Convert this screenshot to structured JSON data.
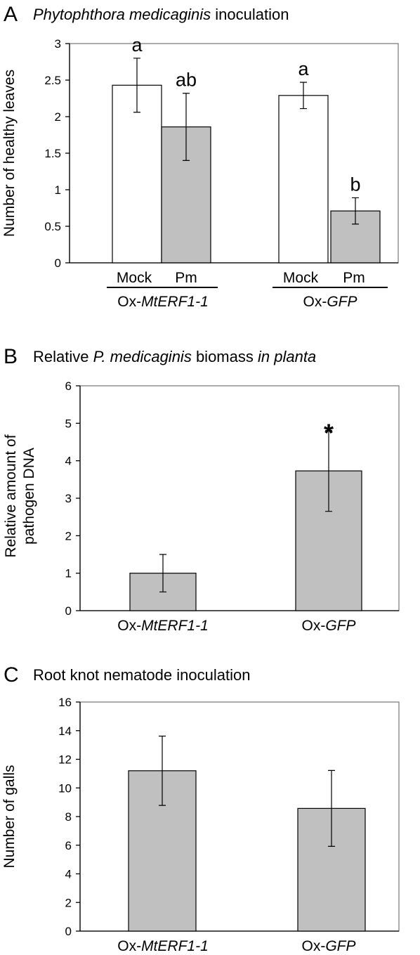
{
  "colors": {
    "mock_bar": "#ffffff",
    "treated_bar": "#c0c0c0",
    "axis": "#000000",
    "plot_frame": "#808080"
  },
  "chart_data": [
    {
      "panel": "A",
      "type": "bar",
      "title_parts": [
        {
          "text": "Phytophthora medicaginis",
          "italic": true
        },
        {
          "text": " inoculation",
          "italic": false
        }
      ],
      "ylabel": "Number of healthy leaves",
      "ylim": [
        0,
        3
      ],
      "yticks": [
        0,
        0.5,
        1,
        1.5,
        2,
        2.5,
        3
      ],
      "bars": [
        {
          "group": 0,
          "slot": 0,
          "sublabel": "Mock",
          "value": 2.43,
          "err": 0.37,
          "sig": "a",
          "color_key": "mock_bar"
        },
        {
          "group": 0,
          "slot": 1,
          "sublabel": "Pm",
          "value": 1.86,
          "err": 0.46,
          "sig": "ab",
          "color_key": "treated_bar"
        },
        {
          "group": 1,
          "slot": 0,
          "sublabel": "Mock",
          "value": 2.29,
          "err": 0.18,
          "sig": "a",
          "color_key": "mock_bar"
        },
        {
          "group": 1,
          "slot": 1,
          "sublabel": "Pm",
          "value": 0.71,
          "err": 0.18,
          "sig": "b",
          "color_key": "treated_bar"
        }
      ],
      "groups": [
        [
          {
            "text": "Ox-",
            "italic": false
          },
          {
            "text": "MtERF1-1",
            "italic": true
          }
        ],
        [
          {
            "text": "Ox-",
            "italic": false
          },
          {
            "text": "GFP",
            "italic": true
          }
        ]
      ]
    },
    {
      "panel": "B",
      "type": "bar",
      "title_parts": [
        {
          "text": "Relative ",
          "italic": false
        },
        {
          "text": "P. medicaginis",
          "italic": true
        },
        {
          "text": " biomass ",
          "italic": false
        },
        {
          "text": "in planta",
          "italic": true
        }
      ],
      "ylabel_lines": [
        "Relative amount of",
        "pathogen DNA"
      ],
      "ylim": [
        0,
        6
      ],
      "yticks": [
        0,
        1,
        2,
        3,
        4,
        5,
        6
      ],
      "bars": [
        {
          "group": 0,
          "value": 1.0,
          "err": 0.5,
          "color_key": "treated_bar"
        },
        {
          "group": 1,
          "value": 3.73,
          "err": 1.08,
          "sig": "*",
          "color_key": "treated_bar"
        }
      ],
      "groups": [
        [
          {
            "text": "Ox-",
            "italic": false
          },
          {
            "text": "MtERF1-1",
            "italic": true
          }
        ],
        [
          {
            "text": "Ox-",
            "italic": false
          },
          {
            "text": "GFP",
            "italic": true
          }
        ]
      ]
    },
    {
      "panel": "C",
      "type": "bar",
      "title_parts": [
        {
          "text": "Root knot nematode inoculation",
          "italic": false
        }
      ],
      "ylabel": "Number of galls",
      "ylim": [
        0,
        16
      ],
      "yticks": [
        0,
        2,
        4,
        6,
        8,
        10,
        12,
        14,
        16
      ],
      "bars": [
        {
          "group": 0,
          "value": 11.2,
          "err": 2.42,
          "color_key": "treated_bar"
        },
        {
          "group": 1,
          "value": 8.57,
          "err": 2.65,
          "color_key": "treated_bar"
        }
      ],
      "groups": [
        [
          {
            "text": "Ox-",
            "italic": false
          },
          {
            "text": "MtERF1-1",
            "italic": true
          }
        ],
        [
          {
            "text": "Ox-",
            "italic": false
          },
          {
            "text": "GFP",
            "italic": true
          }
        ]
      ]
    }
  ]
}
